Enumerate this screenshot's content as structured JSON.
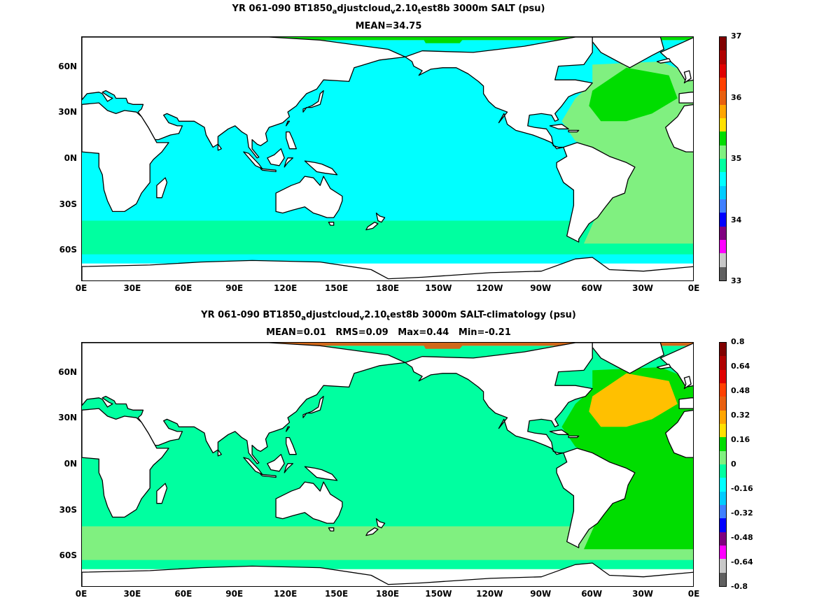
{
  "panels": [
    {
      "title_parts": [
        "YR 061-090 BT1850",
        "a",
        "djustcloud",
        "v",
        "2.10",
        "t",
        "est8b 3000m SALT (psu)"
      ],
      "stats": "MEAN=34.75",
      "colorbar": {
        "labels": [
          "37",
          "36",
          "35",
          "34",
          "33"
        ],
        "colors": [
          "#800000",
          "#b00000",
          "#e00000",
          "#ff4000",
          "#e86010",
          "#ffa500",
          "#ffe000",
          "#00dd00",
          "#80f080",
          "#00ffa0",
          "#00ffff",
          "#00ccff",
          "#4080ff",
          "#0000ff",
          "#800080",
          "#ff00ff",
          "#c8c8c8",
          "#606060"
        ]
      },
      "map": {
        "ocean": "#00ffff",
        "atlantic": "#80f080",
        "subtropical_atlantic": "#00dd00",
        "arctic": "#00dd00",
        "southern": "#00ffa0"
      }
    },
    {
      "title_parts": [
        "YR 061-090 BT1850",
        "a",
        "djustcloud",
        "v",
        "2.10",
        "t",
        "est8b 3000m SALT-climatology (psu)"
      ],
      "stats": "MEAN=0.01   RMS=0.09   Max=0.44   Min=-0.21",
      "colorbar": {
        "labels": [
          "0.8",
          "0.64",
          "0.48",
          "0.32",
          "0.16",
          "0",
          "-0.16",
          "-0.32",
          "-0.48",
          "-0.64",
          "-0.8"
        ],
        "colors": [
          "#800000",
          "#b00000",
          "#e00000",
          "#ff4000",
          "#e86010",
          "#ffa500",
          "#ffe000",
          "#00dd00",
          "#80f080",
          "#00ffa0",
          "#00ffff",
          "#00ccff",
          "#4080ff",
          "#0000ff",
          "#800080",
          "#ff00ff",
          "#c8c8c8",
          "#606060"
        ]
      },
      "map": {
        "ocean": "#00ffa0",
        "atlantic": "#00dd00",
        "subtropical_atlantic": "#ffc000",
        "arctic": "#d0681a",
        "southern": "#80f080"
      }
    }
  ],
  "xticks": [
    "0E",
    "30E",
    "60E",
    "90E",
    "120E",
    "150E",
    "180E",
    "150W",
    "120W",
    "90W",
    "60W",
    "30W",
    "0E"
  ],
  "yticks": [
    "60N",
    "30N",
    "0N",
    "30S",
    "60S"
  ],
  "colors": {
    "land": "#ffffff",
    "coast": "#000000"
  }
}
